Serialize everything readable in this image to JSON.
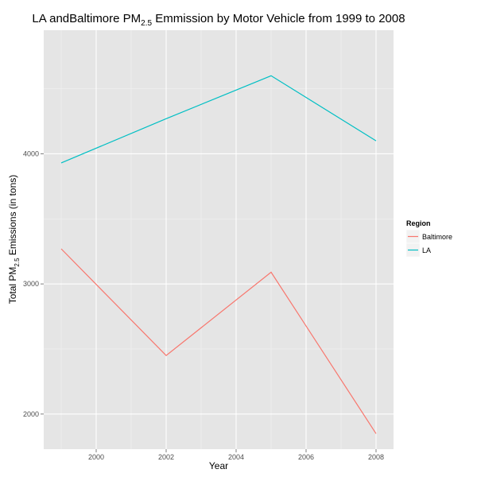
{
  "chart_data": {
    "type": "line",
    "title": {
      "prefix": "LA andBaltimore PM",
      "subscript": "2.5",
      "suffix": " Emmission by Motor Vehicle from 1999 to 2008"
    },
    "xlabel": "Year",
    "ylabel": {
      "prefix": "Total PM",
      "subscript": "2.5",
      "suffix": " Emissions (in tons)"
    },
    "x": [
      1999,
      2002,
      2005,
      2008
    ],
    "xlim": [
      1998.5,
      2008.5
    ],
    "ylim": [
      1730,
      4950
    ],
    "x_ticks": [
      2000,
      2002,
      2004,
      2006,
      2008
    ],
    "x_tick_labels": [
      "2000",
      "2002",
      "2004",
      "2006",
      "2008"
    ],
    "y_ticks": [
      2000,
      3000,
      4000
    ],
    "y_tick_labels": [
      "2000",
      "3000",
      "4000"
    ],
    "grid": true,
    "background": "#e5e5e5",
    "legend": {
      "title": "Region",
      "placement": "right"
    },
    "series": [
      {
        "name": "Baltimore",
        "color": "#f8766d",
        "values": [
          3270,
          2450,
          3090,
          1850
        ]
      },
      {
        "name": "LA",
        "color": "#00bfc4",
        "values": [
          3930,
          4270,
          4600,
          4100
        ]
      }
    ]
  }
}
